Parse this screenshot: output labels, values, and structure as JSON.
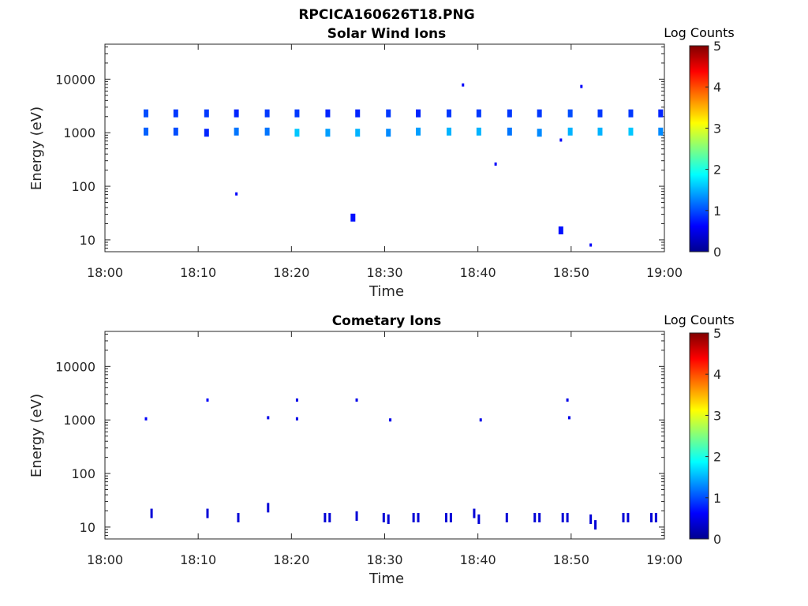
{
  "figure_title": "RPCICA160626T18.PNG",
  "colorbar": {
    "label": "Log Counts",
    "ticks": [
      "0",
      "1",
      "2",
      "3",
      "4",
      "5"
    ],
    "range": [
      0,
      5
    ],
    "colormap": "jet"
  },
  "chart_data": [
    {
      "type": "heatmap",
      "title": "Solar Wind Ions",
      "xlabel": "Time",
      "ylabel": "Energy (eV)",
      "x_ticks": [
        "18:00",
        "18:10",
        "18:20",
        "18:30",
        "18:40",
        "18:50",
        "19:00"
      ],
      "x_range_minutes": [
        0,
        60
      ],
      "y_ticks": [
        "10",
        "100",
        "1000",
        "10000"
      ],
      "y_scale": "log",
      "y_range": [
        6,
        45000
      ],
      "colorbar_label": "Log Counts",
      "points": [
        {
          "t": 4.4,
          "e": 2300,
          "c": 1.0
        },
        {
          "t": 4.4,
          "e": 1050,
          "c": 1.1
        },
        {
          "t": 7.6,
          "e": 2300,
          "c": 0.9
        },
        {
          "t": 7.6,
          "e": 1050,
          "c": 1.0
        },
        {
          "t": 10.9,
          "e": 2300,
          "c": 0.9
        },
        {
          "t": 10.9,
          "e": 1000,
          "c": 0.8
        },
        {
          "t": 14.1,
          "e": 2300,
          "c": 0.8
        },
        {
          "t": 14.1,
          "e": 1050,
          "c": 1.2
        },
        {
          "t": 14.1,
          "e": 72,
          "c": 0.6
        },
        {
          "t": 17.4,
          "e": 2300,
          "c": 0.9
        },
        {
          "t": 17.4,
          "e": 1050,
          "c": 1.2
        },
        {
          "t": 20.6,
          "e": 2300,
          "c": 0.9
        },
        {
          "t": 20.6,
          "e": 1000,
          "c": 1.6
        },
        {
          "t": 23.9,
          "e": 2300,
          "c": 0.8
        },
        {
          "t": 23.9,
          "e": 1000,
          "c": 1.4
        },
        {
          "t": 26.6,
          "e": 26,
          "c": 0.7
        },
        {
          "t": 27.1,
          "e": 2300,
          "c": 0.8
        },
        {
          "t": 27.1,
          "e": 1000,
          "c": 1.5
        },
        {
          "t": 30.4,
          "e": 2300,
          "c": 0.9
        },
        {
          "t": 30.4,
          "e": 1000,
          "c": 1.3
        },
        {
          "t": 33.6,
          "e": 2300,
          "c": 0.8
        },
        {
          "t": 33.6,
          "e": 1050,
          "c": 1.4
        },
        {
          "t": 36.9,
          "e": 2300,
          "c": 0.9
        },
        {
          "t": 36.9,
          "e": 1050,
          "c": 1.5
        },
        {
          "t": 38.4,
          "e": 7800,
          "c": 0.6
        },
        {
          "t": 40.1,
          "e": 2300,
          "c": 0.9
        },
        {
          "t": 40.1,
          "e": 1050,
          "c": 1.5
        },
        {
          "t": 41.9,
          "e": 260,
          "c": 0.6
        },
        {
          "t": 43.4,
          "e": 2300,
          "c": 0.9
        },
        {
          "t": 43.4,
          "e": 1050,
          "c": 1.2
        },
        {
          "t": 46.6,
          "e": 2300,
          "c": 0.9
        },
        {
          "t": 46.6,
          "e": 1000,
          "c": 1.3
        },
        {
          "t": 48.9,
          "e": 15,
          "c": 0.7
        },
        {
          "t": 48.9,
          "e": 730,
          "c": 0.6
        },
        {
          "t": 49.9,
          "e": 2300,
          "c": 1.0
        },
        {
          "t": 49.9,
          "e": 1050,
          "c": 1.5
        },
        {
          "t": 51.1,
          "e": 7300,
          "c": 0.6
        },
        {
          "t": 52.1,
          "e": 8,
          "c": 0.6
        },
        {
          "t": 53.1,
          "e": 2300,
          "c": 0.9
        },
        {
          "t": 53.1,
          "e": 1050,
          "c": 1.5
        },
        {
          "t": 56.4,
          "e": 2300,
          "c": 0.9
        },
        {
          "t": 56.4,
          "e": 1050,
          "c": 1.6
        },
        {
          "t": 59.6,
          "e": 2300,
          "c": 0.8
        },
        {
          "t": 59.6,
          "e": 1050,
          "c": 1.3
        }
      ]
    },
    {
      "type": "heatmap",
      "title": "Cometary Ions",
      "xlabel": "Time",
      "ylabel": "Energy (eV)",
      "x_ticks": [
        "18:00",
        "18:10",
        "18:20",
        "18:30",
        "18:40",
        "18:50",
        "19:00"
      ],
      "x_range_minutes": [
        0,
        60
      ],
      "y_ticks": [
        "10",
        "100",
        "1000",
        "10000"
      ],
      "y_scale": "log",
      "y_range": [
        6,
        45000
      ],
      "colorbar_label": "Log Counts",
      "points": [
        {
          "t": 4.4,
          "e": 1050,
          "c": 0.6
        },
        {
          "t": 5.0,
          "e": 18,
          "c": 0.4
        },
        {
          "t": 11.0,
          "e": 2350,
          "c": 0.6
        },
        {
          "t": 11.0,
          "e": 18,
          "c": 0.4
        },
        {
          "t": 14.3,
          "e": 15,
          "c": 0.4
        },
        {
          "t": 17.5,
          "e": 1100,
          "c": 0.5
        },
        {
          "t": 17.5,
          "e": 23,
          "c": 0.4
        },
        {
          "t": 20.6,
          "e": 2350,
          "c": 0.5
        },
        {
          "t": 20.6,
          "e": 1050,
          "c": 0.5
        },
        {
          "t": 23.6,
          "e": 15,
          "c": 0.4
        },
        {
          "t": 24.1,
          "e": 15,
          "c": 0.4
        },
        {
          "t": 27.0,
          "e": 2350,
          "c": 0.5
        },
        {
          "t": 27.0,
          "e": 16,
          "c": 0.4
        },
        {
          "t": 29.9,
          "e": 15,
          "c": 0.4
        },
        {
          "t": 30.4,
          "e": 14,
          "c": 0.4
        },
        {
          "t": 30.6,
          "e": 1000,
          "c": 0.5
        },
        {
          "t": 33.1,
          "e": 15,
          "c": 0.4
        },
        {
          "t": 33.6,
          "e": 15,
          "c": 0.4
        },
        {
          "t": 36.6,
          "e": 15,
          "c": 0.4
        },
        {
          "t": 37.1,
          "e": 15,
          "c": 0.4
        },
        {
          "t": 39.6,
          "e": 18,
          "c": 0.4
        },
        {
          "t": 40.1,
          "e": 14,
          "c": 0.4
        },
        {
          "t": 40.3,
          "e": 1000,
          "c": 0.5
        },
        {
          "t": 43.1,
          "e": 15,
          "c": 0.4
        },
        {
          "t": 46.1,
          "e": 15,
          "c": 0.4
        },
        {
          "t": 46.6,
          "e": 15,
          "c": 0.4
        },
        {
          "t": 49.1,
          "e": 15,
          "c": 0.4
        },
        {
          "t": 49.6,
          "e": 15,
          "c": 0.4
        },
        {
          "t": 49.6,
          "e": 2350,
          "c": 0.5
        },
        {
          "t": 49.8,
          "e": 1100,
          "c": 0.5
        },
        {
          "t": 52.1,
          "e": 14,
          "c": 0.4
        },
        {
          "t": 52.6,
          "e": 11,
          "c": 0.4
        },
        {
          "t": 55.6,
          "e": 15,
          "c": 0.4
        },
        {
          "t": 56.1,
          "e": 15,
          "c": 0.4
        },
        {
          "t": 58.6,
          "e": 15,
          "c": 0.4
        },
        {
          "t": 59.1,
          "e": 15,
          "c": 0.4
        }
      ]
    }
  ]
}
